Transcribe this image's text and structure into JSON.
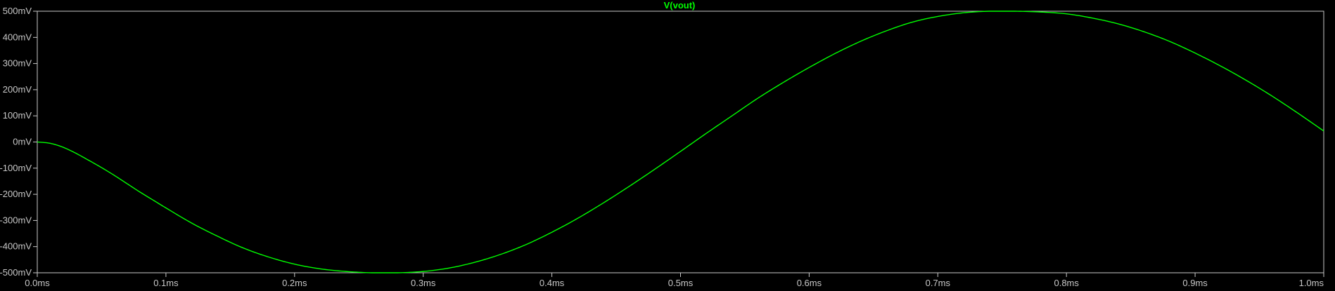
{
  "colors": {
    "background": "#000000",
    "axis": "#c8c8c8",
    "trace": "#00ff00"
  },
  "chart_data": {
    "type": "line",
    "title": "V(vout)",
    "xlabel": "",
    "ylabel": "",
    "xlim": [
      0,
      1.0
    ],
    "ylim": [
      -500,
      500
    ],
    "x_unit": "ms",
    "y_unit": "mV",
    "grid": false,
    "x_ticks": [
      "0.0ms",
      "0.1ms",
      "0.2ms",
      "0.3ms",
      "0.4ms",
      "0.5ms",
      "0.6ms",
      "0.7ms",
      "0.8ms",
      "0.9ms",
      "1.0ms"
    ],
    "x_tick_values": [
      0,
      0.1,
      0.2,
      0.3,
      0.4,
      0.5,
      0.6,
      0.7,
      0.8,
      0.9,
      1.0
    ],
    "y_ticks": [
      "500mV",
      "400mV",
      "300mV",
      "200mV",
      "100mV",
      "0mV",
      "-100mV",
      "-200mV",
      "-300mV",
      "-400mV",
      "-500mV"
    ],
    "y_tick_values": [
      500,
      400,
      300,
      200,
      100,
      0,
      -100,
      -200,
      -300,
      -400,
      -500
    ],
    "series": [
      {
        "name": "V(vout)",
        "x": [
          0,
          0.01,
          0.02,
          0.03,
          0.04,
          0.05,
          0.06,
          0.07,
          0.08,
          0.09,
          0.1,
          0.12,
          0.14,
          0.16,
          0.18,
          0.2,
          0.22,
          0.24,
          0.26,
          0.28,
          0.3,
          0.32,
          0.34,
          0.36,
          0.38,
          0.4,
          0.42,
          0.44,
          0.46,
          0.48,
          0.5,
          0.52,
          0.54,
          0.56,
          0.58,
          0.6,
          0.62,
          0.64,
          0.66,
          0.68,
          0.7,
          0.72,
          0.74,
          0.76,
          0.78,
          0.8,
          0.82,
          0.84,
          0.86,
          0.88,
          0.9,
          0.92,
          0.94,
          0.96,
          0.98,
          1.0
        ],
        "y": [
          0,
          -5,
          -20,
          -43,
          -70,
          -98,
          -128,
          -160,
          -192,
          -222,
          -252,
          -310,
          -360,
          -405,
          -440,
          -467,
          -485,
          -495,
          -500,
          -500,
          -495,
          -482,
          -460,
          -430,
          -392,
          -345,
          -292,
          -233,
          -170,
          -104,
          -36,
          33,
          100,
          167,
          228,
          285,
          338,
          385,
          425,
          458,
          480,
          494,
          500,
          500,
          497,
          490,
          474,
          452,
          422,
          385,
          340,
          290,
          235,
          175,
          110,
          42
        ]
      }
    ]
  }
}
